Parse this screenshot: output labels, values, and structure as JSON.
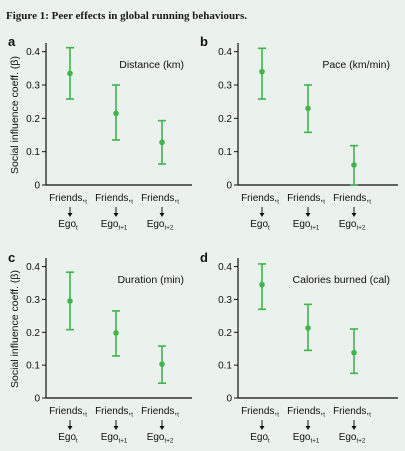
{
  "figure": {
    "title": "Figure 1: Peer effects in global running behaviours."
  },
  "ylabel": "Social influence coeff. (β)",
  "colors": {
    "point": "#3fb54a",
    "axis": "#111111",
    "background": "#ebf1ec"
  },
  "chart_data": [
    {
      "type": "scatter",
      "panel": "a",
      "title": "Distance (km)",
      "ylabel": "Social influence coeff. (β)",
      "ylim": [
        0,
        0.42
      ],
      "yticks": [
        "0",
        "0.1",
        "0.2",
        "0.3",
        "0.4"
      ],
      "categories": [
        {
          "top": "Friends",
          "top_sub": "t",
          "bottom": "Ego",
          "bottom_sub": "t"
        },
        {
          "top": "Friends",
          "top_sub": "t",
          "bottom": "Ego",
          "bottom_sub": "t+1"
        },
        {
          "top": "Friends",
          "top_sub": "t",
          "bottom": "Ego",
          "bottom_sub": "t+2"
        }
      ],
      "values": [
        0.335,
        0.215,
        0.128
      ],
      "lower": [
        0.258,
        0.135,
        0.063
      ],
      "upper": [
        0.412,
        0.3,
        0.193
      ],
      "grid": false
    },
    {
      "type": "scatter",
      "panel": "b",
      "title": "Pace (km/min)",
      "ylabel": "",
      "ylim": [
        0,
        0.42
      ],
      "yticks": [
        "0",
        "0.1",
        "0.2",
        "0.3",
        "0.4"
      ],
      "categories": [
        {
          "top": "Friends",
          "top_sub": "t",
          "bottom": "Ego",
          "bottom_sub": "t"
        },
        {
          "top": "Friends",
          "top_sub": "t",
          "bottom": "Ego",
          "bottom_sub": "t+1"
        },
        {
          "top": "Friends",
          "top_sub": "t",
          "bottom": "Ego",
          "bottom_sub": "t+2"
        }
      ],
      "values": [
        0.34,
        0.23,
        0.06
      ],
      "lower": [
        0.258,
        0.158,
        0.0
      ],
      "upper": [
        0.41,
        0.3,
        0.118
      ],
      "grid": false
    },
    {
      "type": "scatter",
      "panel": "c",
      "title": "Duration (min)",
      "ylabel": "Social influence coeff. (β)",
      "ylim": [
        0,
        0.42
      ],
      "yticks": [
        "0",
        "0.1",
        "0.2",
        "0.3",
        "0.4"
      ],
      "categories": [
        {
          "top": "Friends",
          "top_sub": "t",
          "bottom": "Ego",
          "bottom_sub": "t"
        },
        {
          "top": "Friends",
          "top_sub": "t",
          "bottom": "Ego",
          "bottom_sub": "t+1"
        },
        {
          "top": "Friends",
          "top_sub": "t",
          "bottom": "Ego",
          "bottom_sub": "t+2"
        }
      ],
      "values": [
        0.295,
        0.198,
        0.103
      ],
      "lower": [
        0.208,
        0.128,
        0.045
      ],
      "upper": [
        0.383,
        0.265,
        0.158
      ],
      "grid": false
    },
    {
      "type": "scatter",
      "panel": "d",
      "title": "Calories burned (cal)",
      "ylabel": "",
      "ylim": [
        0,
        0.42
      ],
      "yticks": [
        "0",
        "0.1",
        "0.2",
        "0.3",
        "0.4"
      ],
      "categories": [
        {
          "top": "Friends",
          "top_sub": "t",
          "bottom": "Ego",
          "bottom_sub": "t"
        },
        {
          "top": "Friends",
          "top_sub": "t",
          "bottom": "Ego",
          "bottom_sub": "t+1"
        },
        {
          "top": "Friends",
          "top_sub": "t",
          "bottom": "Ego",
          "bottom_sub": "t+2"
        }
      ],
      "values": [
        0.345,
        0.213,
        0.138
      ],
      "lower": [
        0.27,
        0.145,
        0.075
      ],
      "upper": [
        0.408,
        0.285,
        0.21
      ],
      "grid": false
    }
  ]
}
